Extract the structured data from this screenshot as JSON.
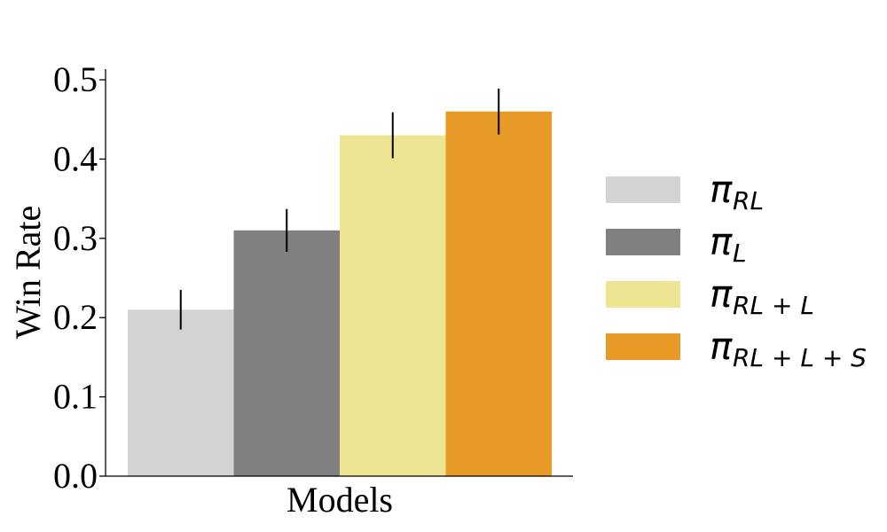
{
  "chart_data": {
    "type": "bar",
    "title": "",
    "xlabel": "Models",
    "ylabel": "Win Rate",
    "ylim": [
      0,
      0.51
    ],
    "yticks": [
      "0.0",
      "0.1",
      "0.2",
      "0.3",
      "0.4",
      "0.5"
    ],
    "series": [
      {
        "name": "π_RL",
        "symbol": "π",
        "subscript": "RL",
        "value": 0.21,
        "error": 0.025,
        "color": "#d3d3d3"
      },
      {
        "name": "π_L",
        "symbol": "π",
        "subscript": "L",
        "value": 0.31,
        "error": 0.027,
        "color": "#808080"
      },
      {
        "name": "π_RL+L",
        "symbol": "π",
        "subscript": "RL + L",
        "value": 0.43,
        "error": 0.029,
        "color": "#eee592"
      },
      {
        "name": "π_RL+L+S",
        "symbol": "π",
        "subscript": "RL + L + S",
        "value": 0.46,
        "error": 0.029,
        "color": "#e89a26"
      }
    ],
    "grid": false,
    "legend_position": "right"
  }
}
